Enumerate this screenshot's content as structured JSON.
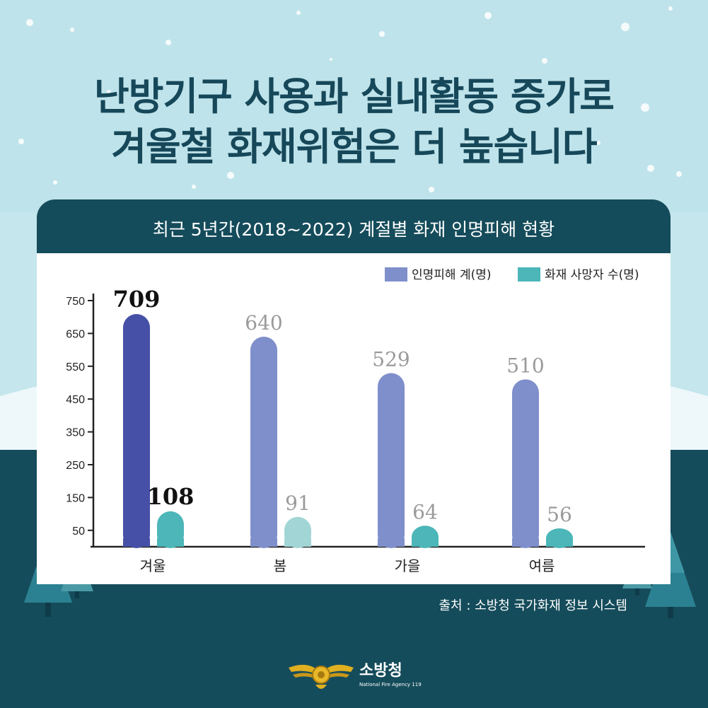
{
  "headline": {
    "line1": "난방기구 사용과 실내활동 증가로",
    "line2": "겨울철 화재위험은 더 높습니다"
  },
  "source": "출처 : 소방청 국가화재 정보 시스템",
  "logo": {
    "name": "소방청",
    "sub": "National Fire Agency 119"
  },
  "colors": {
    "background_sky": "#c4e6ec",
    "background_dark": "#154c5b",
    "headline": "#16485a",
    "injury_highlight": "#4550a6",
    "injury": "#7f8fcb",
    "death": "#4cb6b8",
    "death_light": "#a2d5d5",
    "label_highlight": "#111111",
    "label_muted": "#9a9a9a"
  },
  "chart_data": {
    "type": "bar",
    "title": "최근 5년간(2018~2022) 계절별 화재 인명피해 현황",
    "categories": [
      "겨울",
      "봄",
      "가을",
      "여름"
    ],
    "series": [
      {
        "name": "인명피해 계(명)",
        "values": [
          709,
          640,
          529,
          510
        ]
      },
      {
        "name": "화재 사망자 수(명)",
        "values": [
          108,
          91,
          64,
          56
        ]
      }
    ],
    "yticks": [
      50,
      150,
      250,
      350,
      450,
      550,
      650,
      750
    ],
    "ylim": [
      0,
      750
    ],
    "legend": "top-right",
    "highlight_category": "겨울",
    "grid": false
  }
}
